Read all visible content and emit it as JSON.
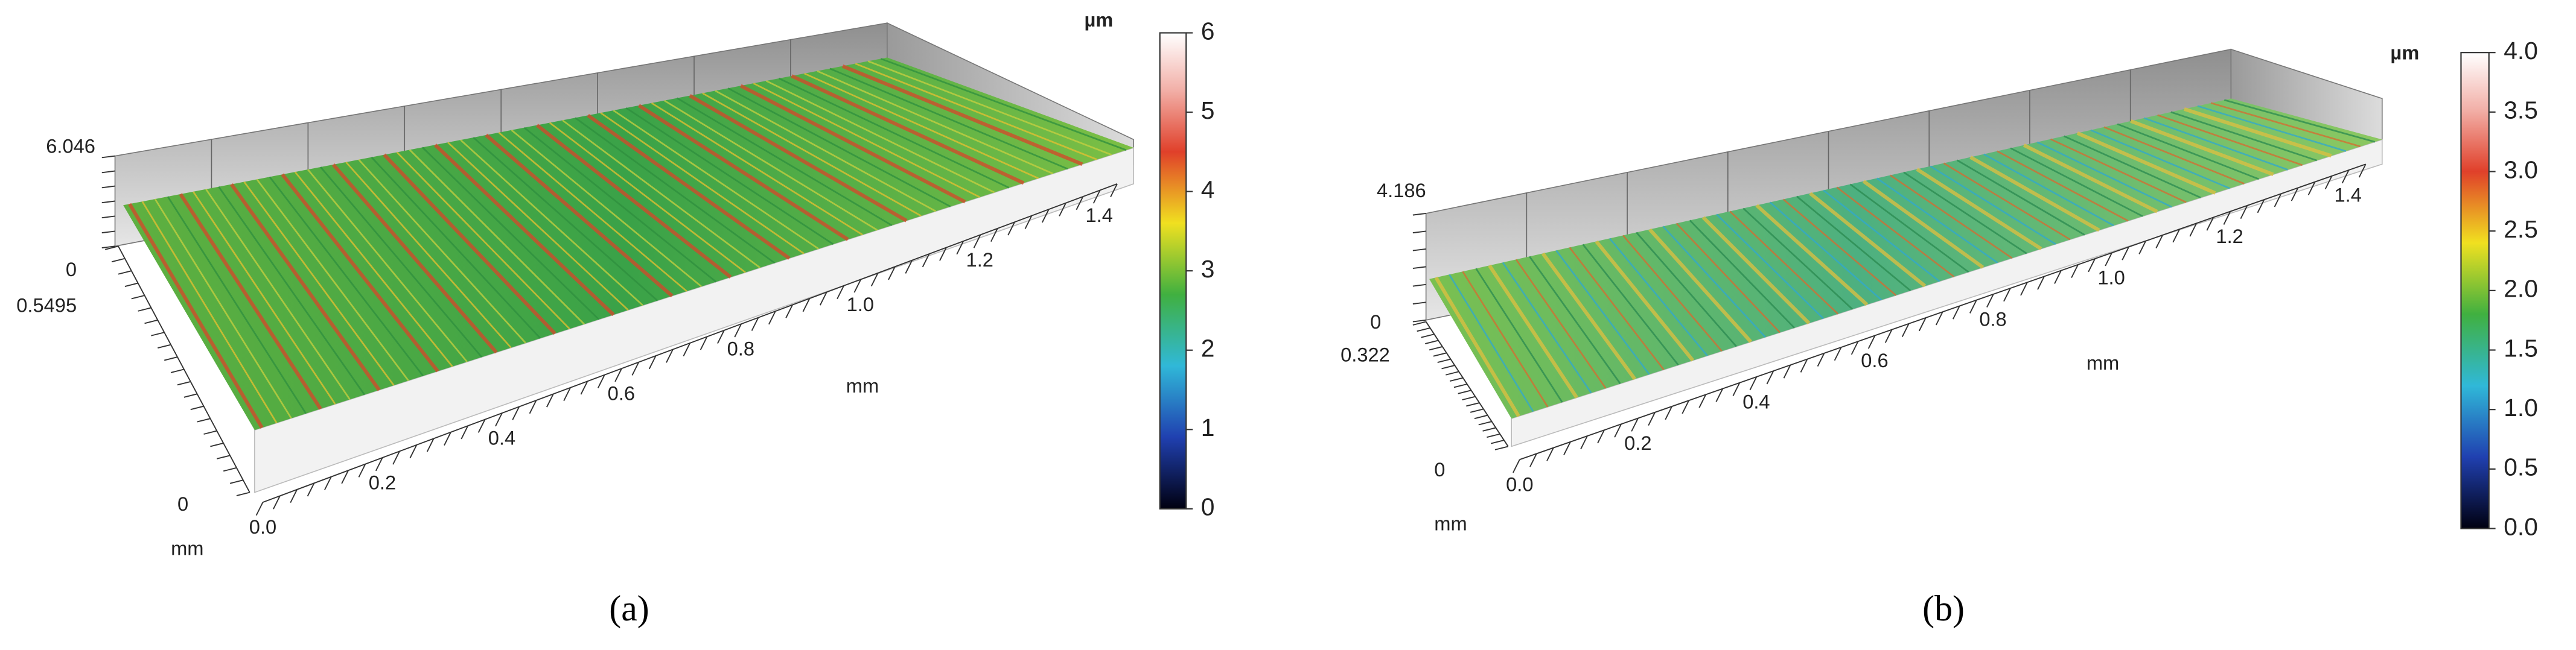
{
  "panels": [
    {
      "caption": "(a)",
      "unit": "µm",
      "colorbar_ticks": [
        "6",
        "5",
        "4",
        "3",
        "2",
        "1",
        "0"
      ],
      "z_top": "6.046",
      "z_zero": "0",
      "y_max": "0.5495",
      "y_zero": "0",
      "y_unit": "mm",
      "x_ticks": [
        "0.0",
        "0.2",
        "0.4",
        "0.6",
        "0.8",
        "1.0",
        "1.2",
        "1.4"
      ],
      "x_unit": "mm"
    },
    {
      "caption": "(b)",
      "unit": "µm",
      "colorbar_ticks": [
        "4.0",
        "3.5",
        "3.0",
        "2.5",
        "2.0",
        "1.5",
        "1.0",
        "0.5",
        "0.0"
      ],
      "z_top": "4.186",
      "z_zero": "0",
      "y_max": "0.322",
      "y_zero": "0",
      "y_unit": "mm",
      "x_ticks": [
        "0.0",
        "0.2",
        "0.4",
        "0.6",
        "0.8",
        "1.0",
        "1.2",
        "1.4"
      ],
      "x_unit": "mm"
    }
  ]
}
